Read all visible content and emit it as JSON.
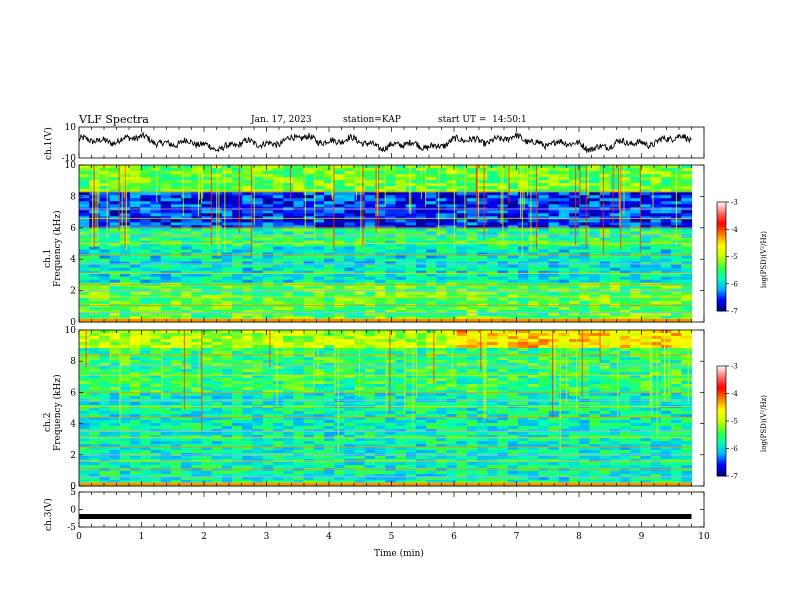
{
  "header": {
    "title": "VLF Spectra",
    "date": "Jan. 17, 2023",
    "station": "station=KAP",
    "start_ut": "start UT =  14:50:1"
  },
  "chart_data": [
    {
      "type": "line",
      "name": "ch1-waveform",
      "ylabel": "ch.1(V)",
      "xlim": [
        0,
        10
      ],
      "ylim": [
        -10,
        10
      ],
      "yticks": [
        "10",
        "-10"
      ],
      "series_end_x": 9.8,
      "line_color": "#000000"
    },
    {
      "type": "heatmap",
      "name": "ch1-spectrogram",
      "ylabel_line1": "ch.1",
      "ylabel_line2": "Frequency (kHz)",
      "xlim": [
        0,
        10
      ],
      "ylim": [
        0,
        10
      ],
      "yticks": [
        "0",
        "2",
        "4",
        "6",
        "8",
        "10"
      ],
      "data_end_x": 9.8,
      "colorbar": {
        "label": "log(PSD)(V²/Hz)",
        "range": [
          -7,
          -3
        ],
        "ticks": [
          "-3",
          "-4",
          "-5",
          "-6",
          "-7"
        ],
        "colormap": [
          "#000080",
          "#0000ff",
          "#00b4ff",
          "#00ffb4",
          "#3cff3c",
          "#c8ff00",
          "#ffff00",
          "#ff8000",
          "#ff0000",
          "#ff6e6e",
          "#ffffff"
        ]
      }
    },
    {
      "type": "heatmap",
      "name": "ch2-spectrogram",
      "ylabel_line1": "ch.2",
      "ylabel_line2": "Frequency (kHz)",
      "xlim": [
        0,
        10
      ],
      "ylim": [
        0,
        10
      ],
      "yticks": [
        "0",
        "2",
        "4",
        "6",
        "8",
        "10"
      ],
      "data_end_x": 9.8,
      "colorbar": {
        "label": "log(PSD)(V²/Hz)",
        "range": [
          -7,
          -3
        ],
        "ticks": [
          "-3",
          "-4",
          "-5",
          "-6",
          "-7"
        ],
        "colormap": [
          "#000080",
          "#0000ff",
          "#00b4ff",
          "#00ffb4",
          "#3cff3c",
          "#c8ff00",
          "#ffff00",
          "#ff8000",
          "#ff0000",
          "#ff6e6e",
          "#ffffff"
        ]
      }
    },
    {
      "type": "line",
      "name": "ch3-waveform",
      "ylabel": "ch.3(V)",
      "xlim": [
        0,
        10
      ],
      "ylim": [
        -5,
        5
      ],
      "yticks": [
        "5",
        "0",
        "-5"
      ],
      "series_value": -2,
      "series_end_x": 9.8,
      "xlabel": "Time (min)",
      "xticks": [
        "0",
        "1",
        "2",
        "3",
        "4",
        "5",
        "6",
        "7",
        "8",
        "9",
        "10"
      ]
    }
  ]
}
